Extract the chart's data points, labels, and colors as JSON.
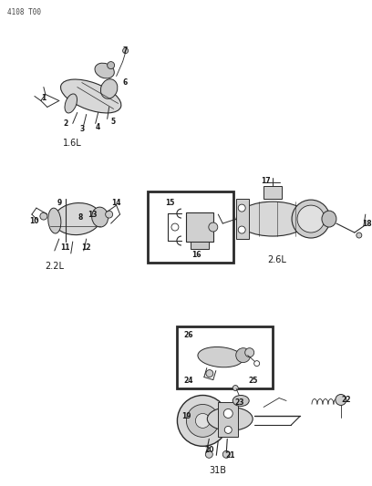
{
  "background_color": "#ffffff",
  "line_color": "#2a2a2a",
  "text_color": "#1a1a1a",
  "fig_width": 4.08,
  "fig_height": 5.33,
  "dpi": 100,
  "header": "4108 T00",
  "label_1_6L": "1.6L",
  "label_2_2L": "2.2L",
  "label_2_6L": "2.6L",
  "label_31B": "31B"
}
